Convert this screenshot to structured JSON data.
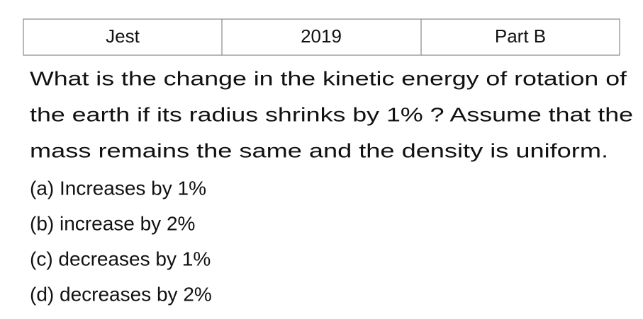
{
  "header": {
    "cells": [
      "Jest",
      "2019",
      "Part B"
    ]
  },
  "question": {
    "lines": [
      "What is the change in the kinetic energy of rotation of",
      "the earth if its radius shrinks by 1% ? Assume that the",
      "mass remains the same and the density is uniform."
    ]
  },
  "options": [
    "(a) Increases by 1%",
    "(b) increase by 2%",
    "(c) decreases by 1%",
    "(d) decreases by 2%"
  ]
}
